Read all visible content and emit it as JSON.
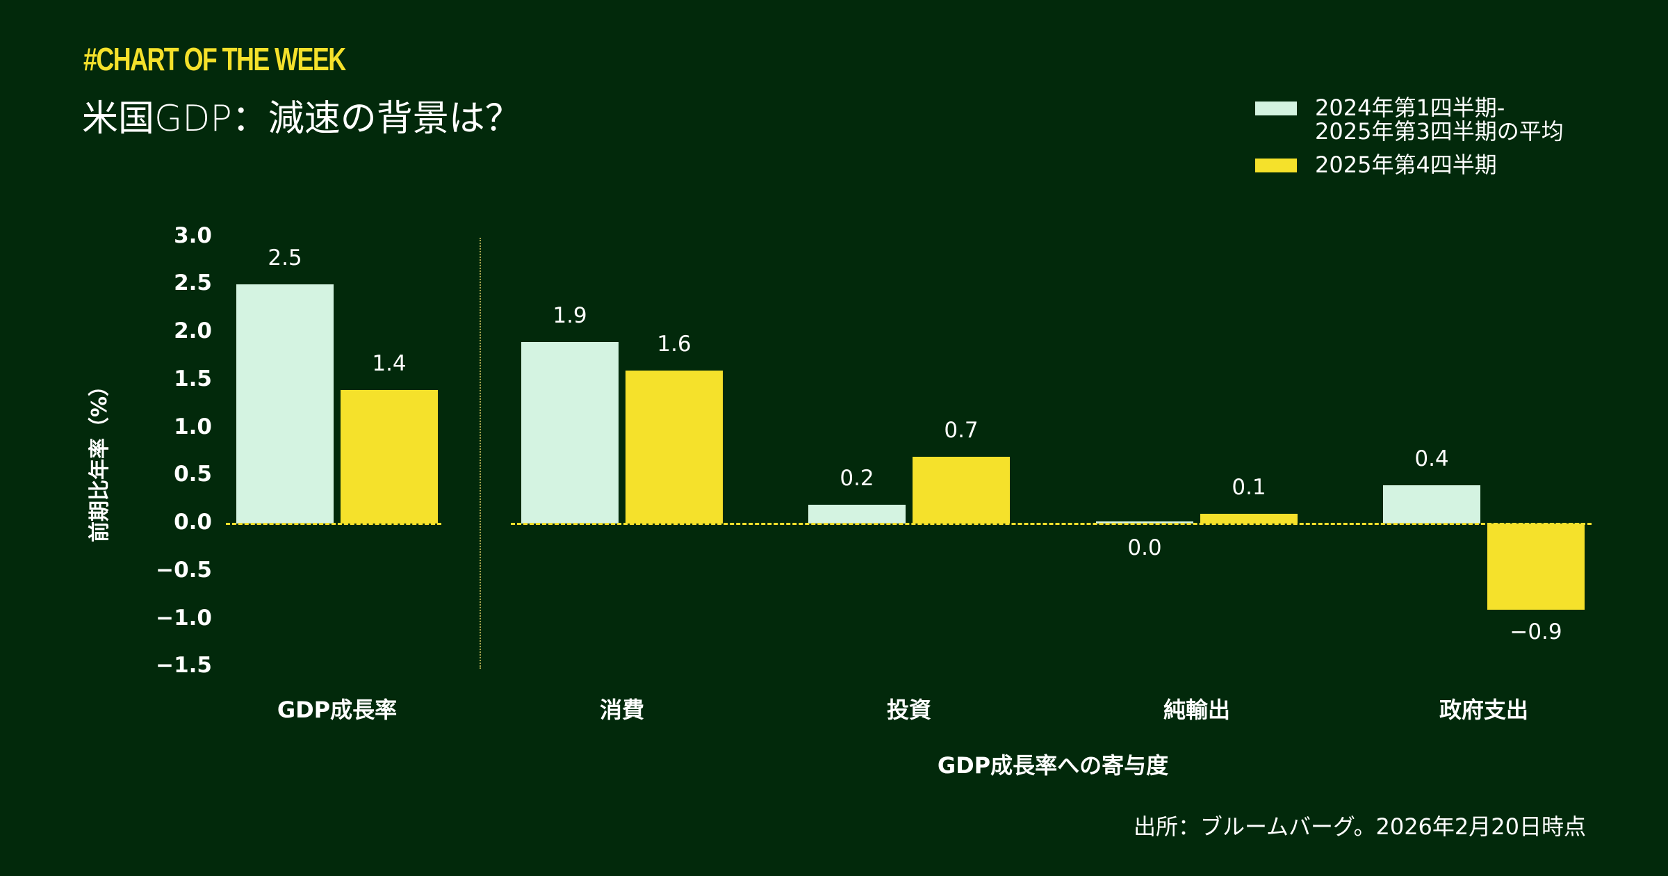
{
  "header": {
    "kicker": "#CHART OF THE WEEK",
    "title": "米国GDP：減速の背景は？"
  },
  "legend": [
    {
      "label": "2024年第1四半期-\n2025年第3四半期の平均",
      "color": "#d4f3e1"
    },
    {
      "label": "2025年第4四半期",
      "color": "#f5e12b"
    }
  ],
  "footer": {
    "xlabel": "GDP成長率への寄与度",
    "source": "出所：ブルームバーグ。2026年2月20日時点"
  },
  "chart_data": {
    "type": "bar",
    "title": "米国GDP：減速の背景は？",
    "xlabel": "GDP成長率への寄与度",
    "ylabel": "前期比年率（%）",
    "ylim": [
      -1.5,
      3.0
    ],
    "yticks": [
      "3.0",
      "2.5",
      "2.0",
      "1.5",
      "1.0",
      "0.5",
      "0.0",
      "−0.5",
      "−1.0",
      "−1.5"
    ],
    "grid": false,
    "legend_position": "top-right",
    "categories": [
      "GDP成長率",
      "消費",
      "投資",
      "純輸出",
      "政府支出"
    ],
    "series": [
      {
        "name": "2024年第1四半期-2025年第3四半期の平均",
        "color": "#d4f3e1",
        "values": [
          2.5,
          1.9,
          0.2,
          0.0,
          0.4
        ],
        "labels": [
          "2.5",
          "1.9",
          "0.2",
          "0.0",
          "0.4"
        ]
      },
      {
        "name": "2025年第4四半期",
        "color": "#f5e12b",
        "values": [
          1.4,
          1.6,
          0.7,
          0.1,
          -0.9
        ],
        "labels": [
          "1.4",
          "1.6",
          "0.7",
          "0.1",
          "−0.9"
        ]
      }
    ]
  }
}
